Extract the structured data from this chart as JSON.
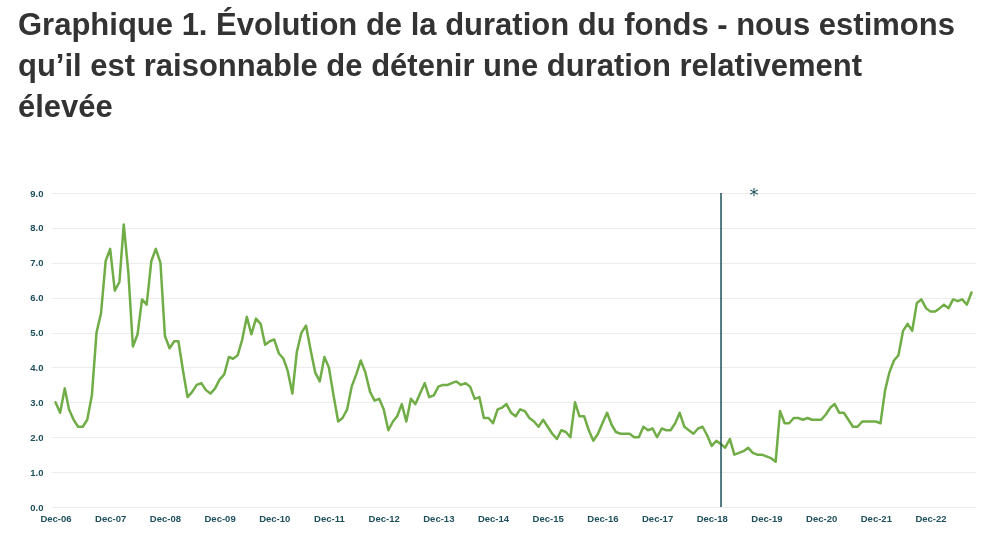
{
  "chart_data": {
    "type": "line",
    "title": "Graphique 1. Évolution de la duration du fonds - nous estimons qu’il est raisonnable de détenir une duration relativement élevée",
    "x": [
      "2006-12",
      "2007-01",
      "2007-02",
      "2007-03",
      "2007-04",
      "2007-05",
      "2007-06",
      "2007-07",
      "2007-08",
      "2007-09",
      "2007-10",
      "2007-11",
      "2007-12",
      "2008-01",
      "2008-02",
      "2008-03",
      "2008-04",
      "2008-05",
      "2008-06",
      "2008-07",
      "2008-08",
      "2008-09",
      "2008-10",
      "2008-11",
      "2008-12",
      "2009-01",
      "2009-02",
      "2009-03",
      "2009-04",
      "2009-05",
      "2009-06",
      "2009-07",
      "2009-08",
      "2009-09",
      "2009-10",
      "2009-11",
      "2009-12",
      "2010-01",
      "2010-02",
      "2010-03",
      "2010-04",
      "2010-05",
      "2010-06",
      "2010-07",
      "2010-08",
      "2010-09",
      "2010-10",
      "2010-11",
      "2010-12",
      "2011-01",
      "2011-02",
      "2011-03",
      "2011-04",
      "2011-05",
      "2011-06",
      "2011-07",
      "2011-08",
      "2011-09",
      "2011-10",
      "2011-11",
      "2011-12",
      "2012-01",
      "2012-02",
      "2012-03",
      "2012-04",
      "2012-05",
      "2012-06",
      "2012-07",
      "2012-08",
      "2012-09",
      "2012-10",
      "2012-11",
      "2012-12",
      "2013-01",
      "2013-02",
      "2013-03",
      "2013-04",
      "2013-05",
      "2013-06",
      "2013-07",
      "2013-08",
      "2013-09",
      "2013-10",
      "2013-11",
      "2013-12",
      "2014-01",
      "2014-02",
      "2014-03",
      "2014-04",
      "2014-05",
      "2014-06",
      "2014-07",
      "2014-08",
      "2014-09",
      "2014-10",
      "2014-11",
      "2014-12",
      "2015-01",
      "2015-02",
      "2015-03",
      "2015-04",
      "2015-05",
      "2015-06",
      "2015-07",
      "2015-08",
      "2015-09",
      "2015-10",
      "2015-11",
      "2015-12",
      "2016-01",
      "2016-02",
      "2016-03",
      "2016-04",
      "2016-05",
      "2016-06",
      "2016-07",
      "2016-08",
      "2016-09",
      "2016-10",
      "2016-11",
      "2016-12",
      "2017-01",
      "2017-02",
      "2017-03",
      "2017-04",
      "2017-05",
      "2017-06",
      "2017-07",
      "2017-08",
      "2017-09",
      "2017-10",
      "2017-11",
      "2017-12",
      "2018-01",
      "2018-02",
      "2018-03",
      "2018-04",
      "2018-05",
      "2018-06",
      "2018-07",
      "2018-08",
      "2018-09",
      "2018-10",
      "2018-11",
      "2018-12",
      "2019-01",
      "2019-02",
      "2019-03",
      "2019-04",
      "2019-05",
      "2019-06",
      "2019-07",
      "2019-08",
      "2019-09",
      "2019-10",
      "2019-11",
      "2019-12",
      "2020-01",
      "2020-02",
      "2020-03",
      "2020-04",
      "2020-05",
      "2020-06",
      "2020-07",
      "2020-08",
      "2020-09",
      "2020-10",
      "2020-11",
      "2020-12",
      "2021-01",
      "2021-02",
      "2021-03",
      "2021-04",
      "2021-05",
      "2021-06",
      "2021-07",
      "2021-08",
      "2021-09",
      "2021-10",
      "2021-11",
      "2021-12",
      "2022-01",
      "2022-02",
      "2022-03",
      "2022-04",
      "2022-05",
      "2022-06",
      "2022-07",
      "2022-08",
      "2022-09",
      "2022-10",
      "2022-11",
      "2022-12",
      "2023-01",
      "2023-02",
      "2023-03",
      "2023-04",
      "2023-05",
      "2023-06",
      "2023-07",
      "2023-08",
      "2023-09"
    ],
    "series": [
      {
        "color": "#70ad47",
        "values": [
          3.0,
          2.7,
          3.4,
          2.8,
          2.5,
          2.3,
          2.3,
          2.5,
          3.2,
          5.0,
          5.55,
          7.05,
          7.4,
          6.2,
          6.45,
          8.1,
          6.7,
          4.6,
          4.95,
          5.95,
          5.8,
          7.05,
          7.4,
          7.0,
          4.9,
          4.55,
          4.75,
          4.75,
          3.9,
          3.15,
          3.3,
          3.5,
          3.55,
          3.35,
          3.25,
          3.4,
          3.65,
          3.8,
          4.3,
          4.25,
          4.35,
          4.8,
          5.45,
          4.95,
          5.4,
          5.25,
          4.65,
          4.75,
          4.8,
          4.4,
          4.25,
          3.9,
          3.25,
          4.45,
          5.0,
          5.2,
          4.5,
          3.85,
          3.6,
          4.3,
          4.0,
          3.2,
          2.45,
          2.55,
          2.8,
          3.45,
          3.8,
          4.2,
          3.85,
          3.3,
          3.05,
          3.1,
          2.8,
          2.2,
          2.45,
          2.6,
          2.95,
          2.45,
          3.1,
          2.95,
          3.25,
          3.55,
          3.15,
          3.2,
          3.45,
          3.5,
          3.5,
          3.55,
          3.6,
          3.5,
          3.55,
          3.45,
          3.1,
          3.15,
          2.55,
          2.55,
          2.4,
          2.8,
          2.85,
          2.95,
          2.7,
          2.6,
          2.8,
          2.75,
          2.55,
          2.45,
          2.3,
          2.5,
          2.3,
          2.1,
          1.95,
          2.2,
          2.15,
          2.0,
          3.0,
          2.6,
          2.6,
          2.2,
          1.9,
          2.1,
          2.4,
          2.7,
          2.35,
          2.15,
          2.1,
          2.1,
          2.1,
          2.0,
          2.0,
          2.3,
          2.2,
          2.25,
          2.0,
          2.25,
          2.2,
          2.2,
          2.4,
          2.7,
          2.3,
          2.2,
          2.1,
          2.25,
          2.3,
          2.05,
          1.75,
          1.9,
          1.8,
          1.7,
          1.95,
          1.5,
          1.55,
          1.6,
          1.7,
          1.55,
          1.5,
          1.5,
          1.45,
          1.4,
          1.3,
          2.75,
          2.4,
          2.4,
          2.55,
          2.55,
          2.5,
          2.55,
          2.5,
          2.5,
          2.5,
          2.65,
          2.85,
          2.95,
          2.7,
          2.7,
          2.5,
          2.3,
          2.3,
          2.45,
          2.45,
          2.45,
          2.45,
          2.4,
          3.35,
          3.85,
          4.2,
          4.35,
          5.05,
          5.25,
          5.05,
          5.85,
          5.95,
          5.7,
          5.6,
          5.6,
          5.7,
          5.8,
          5.7,
          5.95,
          5.9,
          5.95,
          5.8,
          6.15
        ]
      }
    ],
    "xlim": [
      "2006-11",
      "2023-10"
    ],
    "xticks": [
      {
        "value": "2006-12",
        "label": "Dec-06"
      },
      {
        "value": "2007-12",
        "label": "Dec-07"
      },
      {
        "value": "2008-12",
        "label": "Dec-08"
      },
      {
        "value": "2009-12",
        "label": "Dec-09"
      },
      {
        "value": "2010-12",
        "label": "Dec-10"
      },
      {
        "value": "2011-12",
        "label": "Dec-11"
      },
      {
        "value": "2012-12",
        "label": "Dec-12"
      },
      {
        "value": "2013-12",
        "label": "Dec-13"
      },
      {
        "value": "2014-12",
        "label": "Dec-14"
      },
      {
        "value": "2015-12",
        "label": "Dec-15"
      },
      {
        "value": "2016-12",
        "label": "Dec-16"
      },
      {
        "value": "2017-12",
        "label": "Dec-17"
      },
      {
        "value": "2018-12",
        "label": "Dec-18"
      },
      {
        "value": "2019-12",
        "label": "Dec-19"
      },
      {
        "value": "2020-12",
        "label": "Dec-20"
      },
      {
        "value": "2021-12",
        "label": "Dec-21"
      },
      {
        "value": "2022-12",
        "label": "Dec-22"
      }
    ],
    "ylim": [
      0,
      9
    ],
    "yticks": [
      {
        "value": 0,
        "label": "0.0"
      },
      {
        "value": 1,
        "label": "1.0"
      },
      {
        "value": 2,
        "label": "2.0"
      },
      {
        "value": 3,
        "label": "3.0"
      },
      {
        "value": 4,
        "label": "4.0"
      },
      {
        "value": 5,
        "label": "5.0"
      },
      {
        "value": 6,
        "label": "6.0"
      },
      {
        "value": 7,
        "label": "7.0"
      },
      {
        "value": 8,
        "label": "8.0"
      },
      {
        "value": 9,
        "label": "9.0"
      }
    ],
    "grid": "y",
    "ref_lines": [
      {
        "axis": "x",
        "value": "2019-02",
        "color": "#1d4f5c",
        "label": "*"
      }
    ]
  }
}
